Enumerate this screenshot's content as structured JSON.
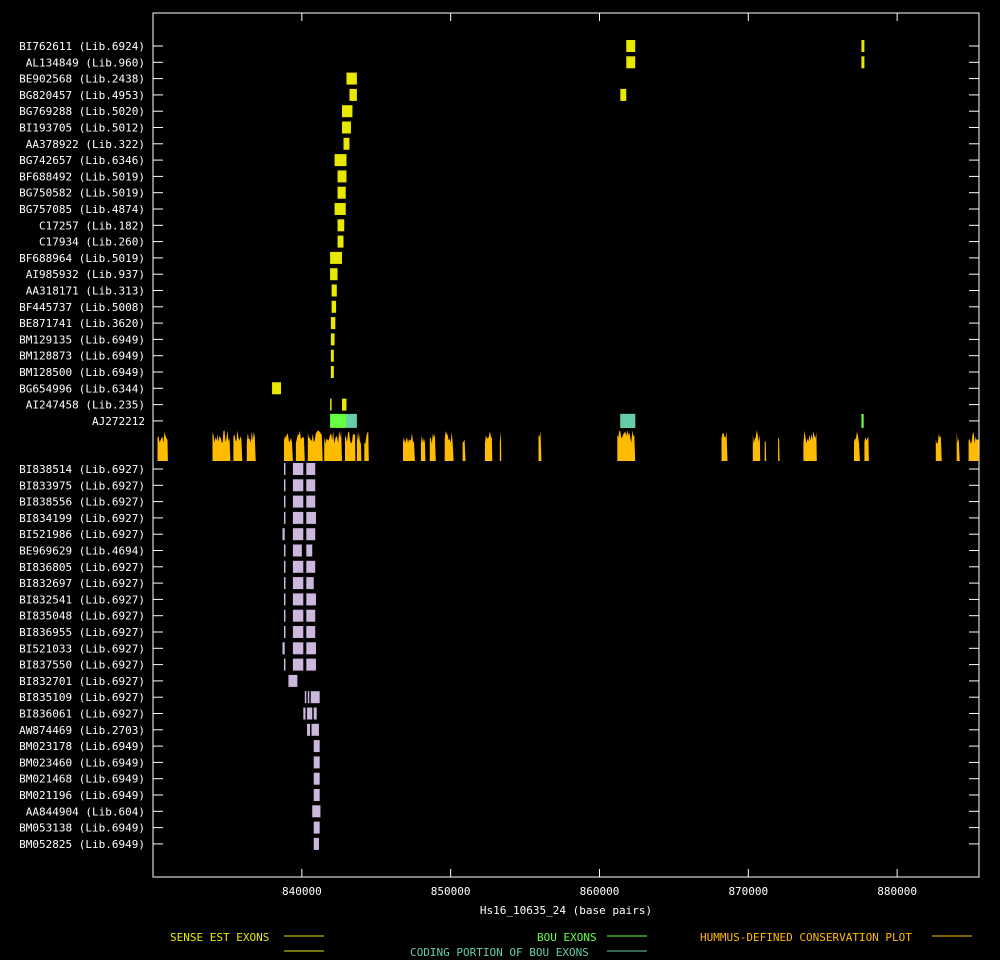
{
  "chart_data": {
    "type": "gene-track",
    "xlabel": "Hs16_10635_24 (base pairs)",
    "xlim": [
      830000,
      885500
    ],
    "x_ticks": [
      840000,
      850000,
      860000,
      870000,
      880000
    ],
    "x_tick_labels": [
      "840000",
      "850000",
      "860000",
      "870000",
      "880000"
    ],
    "colors": {
      "sense": "#e8e800",
      "bou": "#66ff44",
      "coding": "#66ccaa",
      "conservation": "#ffbb00",
      "antisense": "#ccb8dd",
      "axis": "#ffffff"
    },
    "legend": [
      {
        "label": "SENSE EST EXONS",
        "color": "#e8e800"
      },
      {
        "label": "BOU EXONS",
        "color": "#66ff44"
      },
      {
        "label": "HUMMUS-DEFINED CONSERVATION PLOT",
        "color": "#ffbb00"
      },
      {
        "label": "CODING PORTION OF BOU EXONS",
        "color": "#66ccaa"
      }
    ],
    "sense_tracks": [
      {
        "label": "BI762611 (Lib.6924)",
        "exons": [
          [
            861800,
            862400
          ],
          [
            877600,
            877800
          ]
        ]
      },
      {
        "label": "AL134849 (Lib.960)",
        "exons": [
          [
            861800,
            862400
          ],
          [
            877600,
            877800
          ]
        ]
      },
      {
        "label": "BE902568 (Lib.2438)",
        "exons": [
          [
            843000,
            843700
          ]
        ]
      },
      {
        "label": "BG820457 (Lib.4953)",
        "exons": [
          [
            843200,
            843700
          ],
          [
            861400,
            861800
          ]
        ]
      },
      {
        "label": "BG769288 (Lib.5020)",
        "exons": [
          [
            842700,
            843400
          ]
        ]
      },
      {
        "label": "BI193705 (Lib.5012)",
        "exons": [
          [
            842700,
            843300
          ]
        ]
      },
      {
        "label": "AA378922 (Lib.322)",
        "exons": [
          [
            842800,
            843200
          ]
        ]
      },
      {
        "label": "BG742657 (Lib.6346)",
        "exons": [
          [
            842200,
            843000
          ]
        ]
      },
      {
        "label": "BF688492 (Lib.5019)",
        "exons": [
          [
            842400,
            843000
          ]
        ]
      },
      {
        "label": "BG750582 (Lib.5019)",
        "exons": [
          [
            842400,
            842950
          ]
        ]
      },
      {
        "label": "BG757085 (Lib.4874)",
        "exons": [
          [
            842200,
            842950
          ]
        ]
      },
      {
        "label": "C17257 (Lib.182)",
        "exons": [
          [
            842400,
            842850
          ]
        ]
      },
      {
        "label": "C17934 (Lib.260)",
        "exons": [
          [
            842400,
            842800
          ]
        ]
      },
      {
        "label": "BF688964 (Lib.5019)",
        "exons": [
          [
            841900,
            842700
          ]
        ]
      },
      {
        "label": "AI985932 (Lib.937)",
        "exons": [
          [
            841900,
            842400
          ]
        ]
      },
      {
        "label": "AA318171 (Lib.313)",
        "exons": [
          [
            842000,
            842350
          ]
        ]
      },
      {
        "label": "BF445737 (Lib.5008)",
        "exons": [
          [
            842000,
            842300
          ]
        ]
      },
      {
        "label": "BE871741 (Lib.3620)",
        "exons": [
          [
            841950,
            842250
          ]
        ]
      },
      {
        "label": "BM129135 (Lib.6949)",
        "exons": [
          [
            841950,
            842200
          ]
        ]
      },
      {
        "label": "BM128873 (Lib.6949)",
        "exons": [
          [
            841950,
            842150
          ]
        ]
      },
      {
        "label": "BM128500 (Lib.6949)",
        "exons": [
          [
            841950,
            842150
          ]
        ]
      },
      {
        "label": "BG654996 (Lib.6344)",
        "exons": [
          [
            838000,
            838600
          ]
        ]
      },
      {
        "label": "AI247458 (Lib.235)",
        "exons": [
          [
            841900,
            842000
          ],
          [
            842700,
            843000
          ]
        ]
      }
    ],
    "bou_track": {
      "label": "AJ272212",
      "exons": [
        [
          841900,
          843000
        ],
        [
          861400,
          862400
        ],
        [
          877600,
          877750
        ]
      ],
      "coding": [
        [
          843000,
          843700
        ],
        [
          861400,
          862400
        ]
      ]
    },
    "conservation_regions": [
      [
        830300,
        831000
      ],
      [
        834000,
        835200
      ],
      [
        835400,
        836000
      ],
      [
        836300,
        836900
      ],
      [
        838800,
        839400
      ],
      [
        839600,
        840200
      ],
      [
        840400,
        841400
      ],
      [
        841500,
        842700
      ],
      [
        842900,
        843600
      ],
      [
        843700,
        844000
      ],
      [
        844200,
        844500
      ],
      [
        846800,
        847600
      ],
      [
        848000,
        848300
      ],
      [
        848600,
        849000
      ],
      [
        849600,
        850200
      ],
      [
        850800,
        851000
      ],
      [
        852300,
        852800
      ],
      [
        853300,
        853400
      ],
      [
        855900,
        856100
      ],
      [
        861200,
        862400
      ],
      [
        868200,
        868600
      ],
      [
        870300,
        870800
      ],
      [
        871100,
        871200
      ],
      [
        872000,
        872100
      ],
      [
        873700,
        874600
      ],
      [
        877100,
        877500
      ],
      [
        877800,
        878100
      ],
      [
        882600,
        883000
      ],
      [
        884000,
        884200
      ],
      [
        884800,
        885500
      ]
    ],
    "antisense_tracks": [
      {
        "label": "BI838514 (Lib.6927)",
        "exons": [
          [
            838800,
            838900
          ],
          [
            839400,
            840100
          ],
          [
            840300,
            840900
          ]
        ]
      },
      {
        "label": "BI833975 (Lib.6927)",
        "exons": [
          [
            838800,
            838900
          ],
          [
            839400,
            840100
          ],
          [
            840300,
            840900
          ]
        ]
      },
      {
        "label": "BI838556 (Lib.6927)",
        "exons": [
          [
            838800,
            838900
          ],
          [
            839400,
            840100
          ],
          [
            840300,
            840900
          ]
        ]
      },
      {
        "label": "BI834199 (Lib.6927)",
        "exons": [
          [
            838800,
            838900
          ],
          [
            839400,
            840100
          ],
          [
            840300,
            840950
          ]
        ]
      },
      {
        "label": "BI521986 (Lib.6927)",
        "exons": [
          [
            838700,
            838850
          ],
          [
            839400,
            840100
          ],
          [
            840300,
            840900
          ]
        ]
      },
      {
        "label": "BE969629 (Lib.4694)",
        "exons": [
          [
            838800,
            838900
          ],
          [
            839400,
            840000
          ],
          [
            840300,
            840700
          ]
        ]
      },
      {
        "label": "BI836805 (Lib.6927)",
        "exons": [
          [
            838800,
            838900
          ],
          [
            839400,
            840100
          ],
          [
            840300,
            840900
          ]
        ]
      },
      {
        "label": "BI832697 (Lib.6927)",
        "exons": [
          [
            838800,
            838900
          ],
          [
            839400,
            840100
          ],
          [
            840300,
            840800
          ]
        ]
      },
      {
        "label": "BI832541 (Lib.6927)",
        "exons": [
          [
            838800,
            838900
          ],
          [
            839400,
            840100
          ],
          [
            840300,
            840950
          ]
        ]
      },
      {
        "label": "BI835048 (Lib.6927)",
        "exons": [
          [
            838800,
            838900
          ],
          [
            839400,
            840100
          ],
          [
            840300,
            840900
          ]
        ]
      },
      {
        "label": "BI836955 (Lib.6927)",
        "exons": [
          [
            838800,
            838900
          ],
          [
            839400,
            840100
          ],
          [
            840300,
            840900
          ]
        ]
      },
      {
        "label": "BI521033 (Lib.6927)",
        "exons": [
          [
            838700,
            838850
          ],
          [
            839400,
            840100
          ],
          [
            840300,
            840950
          ]
        ]
      },
      {
        "label": "BI837550 (Lib.6927)",
        "exons": [
          [
            838800,
            838900
          ],
          [
            839400,
            840100
          ],
          [
            840300,
            840950
          ]
        ]
      },
      {
        "label": "BI832701 (Lib.6927)",
        "exons": [
          [
            839100,
            839700
          ]
        ]
      },
      {
        "label": "BI835109 (Lib.6927)",
        "exons": [
          [
            840200,
            840300
          ],
          [
            840400,
            840500
          ],
          [
            840600,
            841200
          ]
        ]
      },
      {
        "label": "BI836061 (Lib.6927)",
        "exons": [
          [
            840100,
            840250
          ],
          [
            840350,
            840700
          ],
          [
            840800,
            841000
          ]
        ]
      },
      {
        "label": "AW874469 (Lib.2703)",
        "exons": [
          [
            840350,
            840550
          ],
          [
            840650,
            841150
          ]
        ]
      },
      {
        "label": "BM023178 (Lib.6949)",
        "exons": [
          [
            840800,
            841200
          ]
        ]
      },
      {
        "label": "BM023460 (Lib.6949)",
        "exons": [
          [
            840800,
            841200
          ]
        ]
      },
      {
        "label": "BM021468 (Lib.6949)",
        "exons": [
          [
            840800,
            841200
          ]
        ]
      },
      {
        "label": "BM021196 (Lib.6949)",
        "exons": [
          [
            840800,
            841200
          ]
        ]
      },
      {
        "label": "AA844904 (Lib.604)",
        "exons": [
          [
            840700,
            841250
          ]
        ]
      },
      {
        "label": "BM053138 (Lib.6949)",
        "exons": [
          [
            840800,
            841200
          ]
        ]
      },
      {
        "label": "BM052825 (Lib.6949)",
        "exons": [
          [
            840800,
            841150
          ]
        ]
      }
    ]
  }
}
